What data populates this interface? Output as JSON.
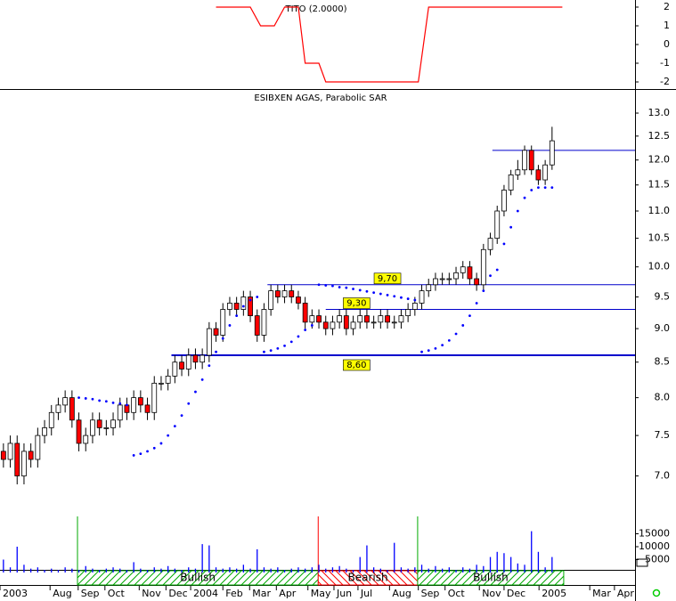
{
  "chart_data": {
    "type": "candlestick",
    "title": "ESIBXEN AGAS, Parabolic SAR",
    "log_scale": true,
    "xlim": [
      -0.5,
      92.1
    ],
    "xticks": [
      {
        "value": -0.5,
        "label": "2003"
      },
      {
        "value": 6.8,
        "label": "Aug"
      },
      {
        "value": 10.9,
        "label": "Sep"
      },
      {
        "value": 14.8,
        "label": "Oct"
      },
      {
        "value": 19.8,
        "label": "Nov"
      },
      {
        "value": 23.7,
        "label": "Dec"
      },
      {
        "value": 27.3,
        "label": "2004"
      },
      {
        "value": 32,
        "label": "Feb"
      },
      {
        "value": 35.9,
        "label": "Mar"
      },
      {
        "value": 39.8,
        "label": "Apr"
      },
      {
        "value": 44.4,
        "label": "May"
      },
      {
        "value": 48.2,
        "label": "Jun"
      },
      {
        "value": 51.7,
        "label": "Jul"
      },
      {
        "value": 56.3,
        "label": "Aug"
      },
      {
        "value": 60.5,
        "label": "Sep"
      },
      {
        "value": 64.4,
        "label": "Oct"
      },
      {
        "value": 69.4,
        "label": "Nov"
      },
      {
        "value": 73,
        "label": "Dec"
      },
      {
        "value": 78.1,
        "label": "2005"
      },
      {
        "value": 85.5,
        "label": "Mar"
      },
      {
        "value": 89.1,
        "label": "Apr"
      }
    ],
    "ylim": [
      6.9,
      13.3
    ],
    "yticks": [
      {
        "value": 7,
        "label": "7.0"
      },
      {
        "value": 7.5,
        "label": "7.5"
      },
      {
        "value": 8,
        "label": "8.0"
      },
      {
        "value": 8.5,
        "label": "8.5"
      },
      {
        "value": 9,
        "label": "9.0"
      },
      {
        "value": 9.5,
        "label": "9.5"
      },
      {
        "value": 10,
        "label": "10.0"
      },
      {
        "value": 10.5,
        "label": "10.5"
      },
      {
        "value": 11,
        "label": "11.0"
      },
      {
        "value": 11.5,
        "label": "11.5"
      },
      {
        "value": 12,
        "label": "12.0"
      },
      {
        "value": 12.5,
        "label": "12.5"
      },
      {
        "value": 13,
        "label": "13.0"
      }
    ],
    "up_color": "#ffffff",
    "down_color": "#ff0000",
    "open": [
      7.3,
      7.2,
      7.4,
      7.0,
      7.3,
      7.2,
      7.5,
      7.6,
      7.8,
      7.9,
      8.0,
      7.7,
      7.4,
      7.5,
      7.7,
      7.6,
      7.6,
      7.7,
      7.9,
      7.8,
      8.0,
      7.9,
      7.8,
      8.2,
      8.2,
      8.3,
      8.5,
      8.4,
      8.6,
      8.5,
      8.6,
      9.0,
      8.9,
      9.3,
      9.4,
      9.3,
      9.5,
      9.2,
      8.9,
      9.3,
      9.6,
      9.5,
      9.6,
      9.5,
      9.4,
      9.1,
      9.2,
      9.1,
      9.0,
      9.1,
      9.2,
      9.0,
      9.1,
      9.2,
      9.1,
      9.1,
      9.2,
      9.1,
      9.1,
      9.2,
      9.3,
      9.4,
      9.6,
      9.7,
      9.8,
      9.8,
      9.8,
      9.9,
      10.0,
      9.8,
      9.7,
      10.3,
      10.5,
      11.0,
      11.4,
      11.7,
      11.8,
      12.2,
      11.8,
      11.6,
      11.9
    ],
    "high": [
      7.4,
      7.5,
      7.5,
      7.4,
      7.4,
      7.6,
      7.7,
      7.9,
      8.0,
      8.1,
      8.1,
      7.8,
      7.6,
      7.8,
      7.8,
      7.7,
      7.8,
      8.0,
      8.0,
      8.1,
      8.1,
      8.0,
      8.3,
      8.3,
      8.4,
      8.6,
      8.6,
      8.7,
      8.7,
      8.7,
      9.1,
      9.1,
      9.4,
      9.5,
      9.5,
      9.6,
      9.6,
      9.3,
      9.4,
      9.7,
      9.7,
      9.7,
      9.7,
      9.6,
      9.5,
      9.3,
      9.3,
      9.2,
      9.2,
      9.3,
      9.3,
      9.2,
      9.3,
      9.3,
      9.2,
      9.3,
      9.3,
      9.2,
      9.3,
      9.4,
      9.5,
      9.7,
      9.8,
      9.9,
      9.9,
      9.9,
      10.0,
      10.1,
      10.1,
      9.9,
      10.4,
      10.6,
      11.1,
      11.5,
      11.8,
      12.0,
      12.3,
      12.3,
      11.9,
      12.0,
      12.7
    ],
    "low": [
      7.1,
      7.1,
      6.9,
      6.9,
      7.1,
      7.1,
      7.4,
      7.5,
      7.7,
      7.8,
      7.6,
      7.3,
      7.3,
      7.4,
      7.5,
      7.5,
      7.5,
      7.6,
      7.7,
      7.7,
      7.8,
      7.7,
      7.7,
      8.1,
      8.1,
      8.2,
      8.3,
      8.3,
      8.4,
      8.4,
      8.5,
      8.8,
      8.8,
      9.2,
      9.2,
      9.2,
      9.1,
      8.8,
      8.8,
      9.2,
      9.4,
      9.4,
      9.4,
      9.3,
      9.0,
      9.0,
      9.0,
      8.9,
      8.9,
      9.0,
      8.9,
      8.9,
      9.0,
      9.0,
      9.0,
      9.0,
      9.0,
      9.0,
      9.0,
      9.1,
      9.2,
      9.3,
      9.5,
      9.6,
      9.7,
      9.7,
      9.7,
      9.8,
      9.7,
      9.6,
      9.6,
      10.2,
      10.4,
      10.9,
      11.3,
      11.6,
      11.7,
      11.7,
      11.5,
      11.5,
      11.8
    ],
    "close": [
      7.2,
      7.4,
      7.0,
      7.3,
      7.2,
      7.5,
      7.6,
      7.8,
      7.9,
      8.0,
      7.7,
      7.4,
      7.5,
      7.7,
      7.6,
      7.6,
      7.7,
      7.9,
      7.8,
      8.0,
      7.9,
      7.8,
      8.2,
      8.2,
      8.3,
      8.5,
      8.4,
      8.6,
      8.5,
      8.6,
      9.0,
      8.9,
      9.3,
      9.4,
      9.3,
      9.5,
      9.2,
      8.9,
      9.3,
      9.6,
      9.5,
      9.6,
      9.5,
      9.4,
      9.1,
      9.2,
      9.1,
      9.0,
      9.1,
      9.2,
      9.0,
      9.1,
      9.2,
      9.1,
      9.1,
      9.2,
      9.1,
      9.1,
      9.2,
      9.3,
      9.4,
      9.6,
      9.7,
      9.8,
      9.8,
      9.8,
      9.9,
      10.0,
      9.8,
      9.7,
      10.3,
      10.5,
      11.0,
      11.4,
      11.7,
      11.8,
      12.2,
      11.8,
      11.6,
      11.9,
      12.4
    ],
    "sar": {
      "color": "#0000ff",
      "values": [
        null,
        null,
        null,
        null,
        null,
        null,
        null,
        null,
        null,
        null,
        null,
        8.0,
        7.99,
        7.98,
        7.96,
        7.95,
        7.93,
        7.92,
        7.9,
        7.25,
        7.27,
        7.3,
        7.34,
        7.4,
        7.5,
        7.62,
        7.76,
        7.92,
        8.08,
        8.25,
        8.45,
        8.65,
        8.85,
        9.05,
        9.2,
        9.35,
        9.45,
        9.5,
        8.65,
        8.67,
        8.7,
        8.74,
        8.8,
        8.88,
        8.98,
        9.05,
        9.7,
        9.69,
        9.68,
        9.66,
        9.65,
        9.63,
        9.61,
        9.59,
        9.57,
        9.55,
        9.53,
        9.51,
        9.49,
        9.47,
        9.45,
        8.65,
        8.67,
        8.7,
        8.75,
        8.82,
        8.92,
        9.05,
        9.2,
        9.4,
        9.6,
        9.85,
        9.95,
        10.4,
        10.7,
        11.0,
        11.25,
        11.4,
        11.45,
        11.45,
        11.45
      ]
    },
    "levels": [
      {
        "value": 12.2,
        "start": 71.3,
        "line_width": 1
      },
      {
        "value": 9.7,
        "start": 38.5,
        "label": "9,70",
        "label_at": 56,
        "line_width": 1
      },
      {
        "value": 9.3,
        "start": 47,
        "label": "9,30",
        "label_at": 51.5,
        "line_width": 1
      },
      {
        "value": 8.6,
        "start": 24.5,
        "label": "8,60",
        "label_at": 51.5,
        "line_width": 2
      }
    ],
    "level_color": "#0000cc",
    "label_box_color": "#ffff00",
    "volume": {
      "color": "#0000ff",
      "ylim": [
        0,
        20000
      ],
      "yticks": [
        5000,
        10000,
        15000
      ],
      "values": [
        5000,
        2000,
        10000,
        3000,
        1500,
        2000,
        1000,
        1500,
        1000,
        2000,
        1500,
        1000,
        2500,
        1500,
        1000,
        1500,
        2000,
        1500,
        1000,
        4000,
        1500,
        1000,
        2000,
        1500,
        2500,
        1500,
        1000,
        2000,
        1500,
        11000,
        10500,
        2000,
        1500,
        2000,
        1500,
        3000,
        1500,
        9000,
        2000,
        1500,
        2000,
        1000,
        1500,
        2000,
        1500,
        2000,
        3000,
        1500,
        2000,
        2500,
        1500,
        1000,
        6000,
        10500,
        2000,
        1500,
        1000,
        11500,
        2000,
        1500,
        2000,
        3000,
        1500,
        2500,
        1500,
        2000,
        1000,
        2000,
        1500,
        3000,
        2500,
        6000,
        8000,
        7500,
        6000,
        3500,
        3000,
        16000,
        8000,
        2000,
        6000
      ]
    },
    "regions": [
      {
        "label": "Bullish",
        "start": 10.8,
        "end": 45.9,
        "color": "#00aa00"
      },
      {
        "label": "Bearish",
        "start": 45.9,
        "end": 60.4,
        "color": "#ff0000"
      },
      {
        "label": "Bullish",
        "start": 60.4,
        "end": 81.7,
        "color": "#00aa00"
      }
    ],
    "indicator": {
      "title": "TITO (2.0000)",
      "color": "#ff0000",
      "ylim": [
        -2.38,
        2.38
      ],
      "yticks": [
        2,
        1,
        0,
        -1,
        -2
      ],
      "x": [
        31,
        36,
        37.5,
        39.5,
        41,
        43,
        44,
        46,
        47,
        60.5,
        62,
        81.5
      ],
      "values": [
        2,
        2,
        1,
        1,
        2,
        2,
        -1,
        -1,
        -2,
        -2,
        2,
        2
      ]
    }
  }
}
